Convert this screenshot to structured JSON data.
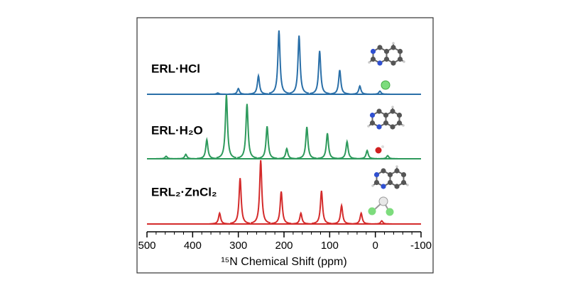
{
  "chart_data": {
    "type": "spectrum",
    "x_label": "¹⁵N Chemical Shift (ppm)",
    "xlim": [
      500,
      -100
    ],
    "xticks": [
      500,
      400,
      300,
      200,
      100,
      0,
      -100
    ],
    "minor_xticks": [
      480,
      460,
      440,
      420,
      380,
      360,
      340,
      320,
      280,
      260,
      240,
      220,
      180,
      160,
      140,
      120,
      80,
      60,
      40,
      20,
      -20,
      -40,
      -60,
      -80
    ],
    "series": [
      {
        "name": "ERL·HCl",
        "color": "#2a6fa8",
        "x": [
          345,
          300,
          256,
          211,
          167,
          122,
          78,
          34,
          -10
        ],
        "values": [
          0.02,
          0.09,
          0.29,
          1,
          0.92,
          0.68,
          0.38,
          0.13,
          0.05
        ]
      },
      {
        "name": "ERL·H₂O",
        "color": "#2e9a5c",
        "x": [
          458,
          415,
          369,
          326,
          281,
          237,
          194,
          150,
          105,
          62,
          18,
          -27
        ],
        "values": [
          0.04,
          0.07,
          0.3,
          1,
          0.86,
          0.51,
          0.16,
          0.5,
          0.4,
          0.27,
          0.13,
          0.05
        ]
      },
      {
        "name": "ERL₂·ZnCl₂",
        "color": "#d42b2b",
        "x": [
          341,
          296,
          251,
          206,
          163,
          118,
          74,
          31,
          -14
        ],
        "values": [
          0.17,
          0.72,
          1,
          0.51,
          0.17,
          0.52,
          0.29,
          0.17,
          0.05
        ]
      }
    ]
  }
}
